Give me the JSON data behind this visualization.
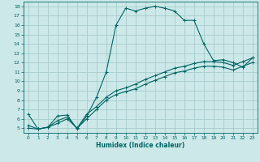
{
  "title": "",
  "xlabel": "Humidex (Indice chaleur)",
  "bg_color": "#cce8e8",
  "grid_color": "#aacccc",
  "line_color": "#006666",
  "xlim": [
    -0.5,
    23.5
  ],
  "ylim": [
    4.5,
    18.5
  ],
  "x_ticks": [
    0,
    1,
    2,
    3,
    4,
    5,
    6,
    7,
    8,
    9,
    10,
    11,
    12,
    13,
    14,
    15,
    16,
    17,
    18,
    19,
    20,
    21,
    22,
    23
  ],
  "y_ticks": [
    5,
    6,
    7,
    8,
    9,
    10,
    11,
    12,
    13,
    14,
    15,
    16,
    17,
    18
  ],
  "curve1_x": [
    0,
    1,
    2,
    3,
    4,
    5,
    6,
    7,
    8,
    9,
    10,
    11,
    12,
    13,
    14,
    15,
    16,
    17,
    18,
    19,
    20,
    21,
    22,
    23
  ],
  "curve1_y": [
    6.5,
    4.9,
    5.1,
    6.3,
    6.4,
    4.9,
    6.3,
    8.3,
    11.0,
    16.0,
    17.8,
    17.5,
    17.8,
    18.0,
    17.8,
    17.5,
    16.5,
    16.5,
    14.0,
    12.2,
    12.3,
    12.0,
    11.5,
    12.5
  ],
  "curve2_x": [
    0,
    1,
    2,
    3,
    4,
    5,
    6,
    7,
    8,
    9,
    10,
    11,
    12,
    13,
    14,
    15,
    16,
    17,
    18,
    19,
    20,
    21,
    22,
    23
  ],
  "curve2_y": [
    5.3,
    4.9,
    5.1,
    5.8,
    6.2,
    5.0,
    6.5,
    7.3,
    8.3,
    9.0,
    9.3,
    9.7,
    10.2,
    10.6,
    11.0,
    11.4,
    11.6,
    11.9,
    12.1,
    12.1,
    12.0,
    11.7,
    12.1,
    12.5
  ],
  "curve3_x": [
    0,
    1,
    2,
    3,
    4,
    5,
    6,
    7,
    8,
    9,
    10,
    11,
    12,
    13,
    14,
    15,
    16,
    17,
    18,
    19,
    20,
    21,
    22,
    23
  ],
  "curve3_y": [
    5.0,
    4.9,
    5.1,
    5.5,
    6.0,
    5.0,
    6.0,
    7.0,
    8.0,
    8.6,
    8.9,
    9.2,
    9.7,
    10.1,
    10.5,
    10.9,
    11.1,
    11.4,
    11.6,
    11.6,
    11.5,
    11.2,
    11.6,
    12.0
  ]
}
